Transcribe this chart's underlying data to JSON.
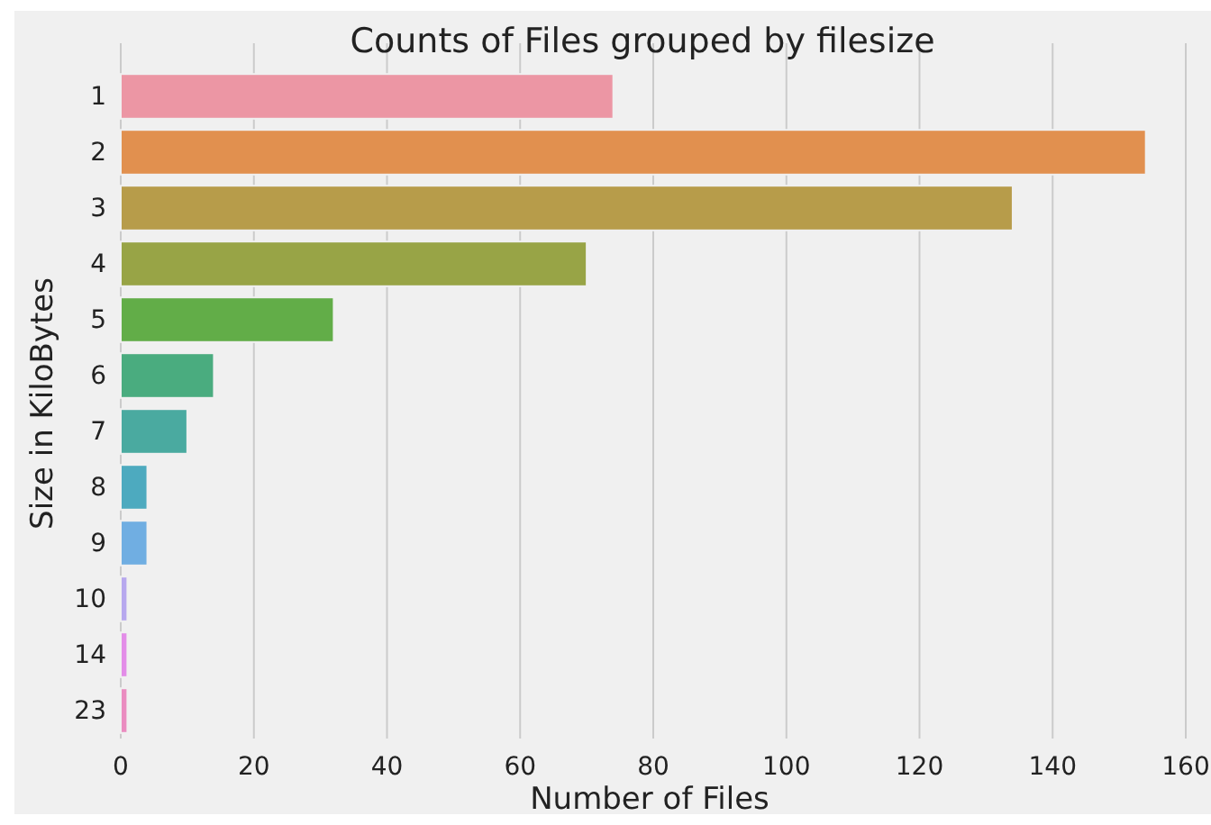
{
  "chart_data": {
    "type": "bar",
    "orientation": "horizontal",
    "title": "Counts of Files grouped by filesize",
    "xlabel": "Number of Files",
    "ylabel": "Size in KiloBytes",
    "categories": [
      "1",
      "2",
      "3",
      "4",
      "5",
      "6",
      "7",
      "8",
      "9",
      "10",
      "14",
      "23"
    ],
    "values": [
      74,
      154,
      134,
      70,
      32,
      14,
      10,
      4,
      4,
      1,
      1,
      1
    ],
    "colors": [
      "#ec96a4",
      "#e1904f",
      "#b79c4a",
      "#98a446",
      "#62ad48",
      "#4aac7f",
      "#4aaaa0",
      "#4daabf",
      "#70aee2",
      "#b7a8ee",
      "#e38de8",
      "#ea8cc0"
    ],
    "xlim": [
      0,
      160
    ],
    "xticks": [
      0,
      20,
      40,
      60,
      80,
      100,
      120,
      140,
      160
    ],
    "grid": "x"
  }
}
